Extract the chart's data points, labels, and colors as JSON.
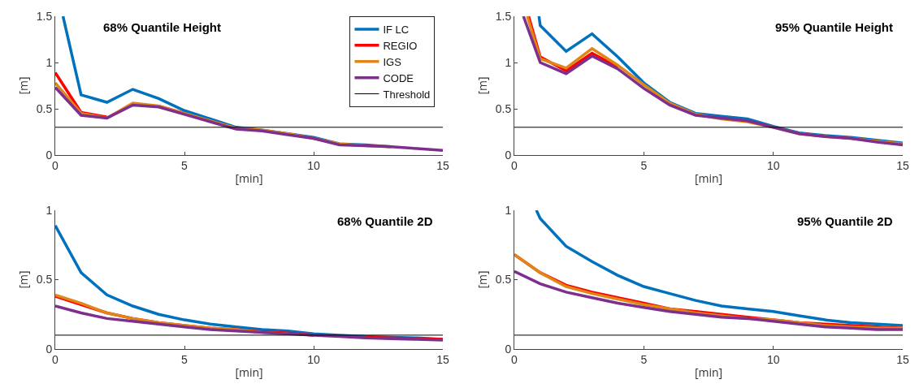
{
  "chart_data": [
    {
      "type": "line",
      "title": "68% Quantile Height",
      "xlabel": "[min]",
      "ylabel": "[m]",
      "x": [
        0,
        1,
        2,
        3,
        4,
        5,
        6,
        7,
        8,
        9,
        10,
        11,
        12,
        13,
        14,
        15
      ],
      "xlim": [
        0,
        15
      ],
      "xticks": [
        0,
        5,
        10,
        15
      ],
      "ylim": [
        0,
        1.5
      ],
      "yticks": [
        0,
        0.5,
        1,
        1.5
      ],
      "grid": false,
      "legend": "top right",
      "marker": "none",
      "line_style": "solid",
      "series": [
        {
          "name": "IF LC",
          "color": "#0072bd",
          "x": [
            0.3,
            1,
            2,
            3,
            4,
            5,
            6,
            7,
            8,
            9,
            10,
            11,
            12,
            13
          ],
          "values": [
            1.5,
            0.65,
            0.57,
            0.71,
            0.61,
            0.48,
            0.39,
            0.3,
            0.27,
            0.23,
            0.19,
            0.12,
            0.11,
            0.09
          ]
        },
        {
          "name": "REGIO",
          "color": "#ff0000",
          "values": [
            0.89,
            0.46,
            0.41,
            null,
            0.53,
            0.45,
            null,
            null,
            null,
            null,
            null,
            null,
            null,
            null,
            null,
            null
          ]
        },
        {
          "name": "IGS",
          "color": "#df8616",
          "values": [
            0.78,
            0.45,
            0.4,
            0.56,
            0.53,
            0.45,
            0.37,
            0.29,
            0.27,
            0.23,
            0.18,
            0.12,
            0.1,
            0.09,
            null,
            null
          ]
        },
        {
          "name": "CODE",
          "color": "#7e2f8e",
          "values": [
            0.73,
            0.43,
            0.4,
            0.54,
            0.52,
            0.44,
            0.36,
            0.28,
            0.26,
            0.22,
            0.18,
            0.11,
            0.1,
            0.09,
            0.07,
            0.05
          ]
        }
      ],
      "ref_lines": [
        {
          "axis": "y",
          "value": 0.3,
          "label": "Threshold",
          "color": "#000000"
        }
      ]
    },
    {
      "type": "line",
      "title": "95% Quantile Height",
      "xlabel": "[min]",
      "ylabel": "[m]",
      "xlim": [
        0,
        15
      ],
      "xticks": [
        0,
        5,
        10,
        15
      ],
      "ylim": [
        0,
        1.5
      ],
      "yticks": [
        0,
        0.5,
        1,
        1.5
      ],
      "grid": false,
      "marker": "none",
      "line_style": "solid",
      "series": [
        {
          "color": "#0072bd",
          "x": [
            0.95,
            1,
            2,
            3,
            4,
            5,
            6,
            7,
            8,
            9,
            10,
            11,
            12,
            13,
            14,
            15
          ],
          "values": [
            1.5,
            1.4,
            1.12,
            1.31,
            1.06,
            0.78,
            0.57,
            0.45,
            0.42,
            0.39,
            0.31,
            0.24,
            0.21,
            0.19,
            0.16,
            0.13
          ]
        },
        {
          "color": "#ff0000",
          "x": [
            0.55,
            1,
            2,
            3,
            4
          ],
          "values": [
            1.5,
            1.06,
            0.91,
            1.1,
            0.95
          ]
        },
        {
          "color": "#df8616",
          "x": [
            0.5,
            1,
            2,
            3,
            4,
            5,
            6,
            7,
            8,
            9,
            10,
            11,
            12,
            13,
            14,
            15
          ],
          "values": [
            1.5,
            1.04,
            0.94,
            1.15,
            0.97,
            0.76,
            0.56,
            0.44,
            0.39,
            0.36,
            0.3,
            0.23,
            0.2,
            0.18,
            0.15,
            0.12
          ]
        },
        {
          "color": "#7e2f8e",
          "x": [
            0.35,
            1,
            2,
            3,
            4,
            5,
            6,
            7,
            8,
            9,
            10,
            11,
            12,
            13,
            14,
            15
          ],
          "values": [
            1.5,
            1.0,
            0.88,
            1.07,
            0.93,
            0.72,
            0.54,
            0.43,
            0.4,
            0.37,
            0.3,
            0.23,
            0.2,
            0.18,
            0.14,
            0.11
          ]
        }
      ],
      "ref_lines": [
        {
          "axis": "y",
          "value": 0.3,
          "color": "#000000"
        }
      ]
    },
    {
      "type": "line",
      "title": "68% Quantile 2D",
      "xlabel": "[min]",
      "ylabel": "[m]",
      "x": [
        0,
        1,
        2,
        3,
        4,
        5,
        6,
        7,
        8,
        9,
        10,
        11,
        12,
        13,
        14,
        15
      ],
      "xlim": [
        0,
        15
      ],
      "xticks": [
        0,
        5,
        10,
        15
      ],
      "ylim": [
        0,
        1
      ],
      "yticks": [
        0,
        0.5,
        1
      ],
      "grid": false,
      "marker": "none",
      "line_style": "solid",
      "series": [
        {
          "color": "#0072bd",
          "values": [
            0.89,
            0.55,
            0.39,
            0.31,
            0.25,
            0.21,
            0.18,
            0.16,
            0.14,
            0.13,
            0.11,
            0.1,
            0.09,
            0.085,
            0.08,
            0.07
          ]
        },
        {
          "color": "#ff0000",
          "values": [
            0.38,
            0.32,
            0.26,
            0.22,
            0.19,
            0.17,
            0.15,
            0.14,
            0.125,
            0.115,
            0.1,
            null,
            0.085,
            0.08,
            0.075,
            0.07
          ]
        },
        {
          "color": "#df8616",
          "values": [
            0.39,
            0.33,
            0.26,
            0.22,
            0.19,
            0.17,
            0.15,
            0.14,
            0.12,
            0.11,
            null,
            null,
            null,
            null,
            null,
            null
          ]
        },
        {
          "color": "#7e2f8e",
          "values": [
            0.31,
            0.26,
            0.22,
            0.2,
            0.18,
            0.16,
            0.14,
            0.13,
            0.12,
            0.11,
            0.1,
            0.09,
            0.08,
            0.075,
            0.07,
            0.065
          ]
        }
      ],
      "ref_lines": [
        {
          "axis": "y",
          "value": 0.1,
          "color": "#000000"
        }
      ]
    },
    {
      "type": "line",
      "title": "95% Quantile 2D",
      "xlabel": "[min]",
      "ylabel": "[m]",
      "x": [
        0,
        1,
        2,
        3,
        4,
        5,
        6,
        7,
        8,
        9,
        10,
        11,
        12,
        13,
        14,
        15
      ],
      "xlim": [
        0,
        15
      ],
      "xticks": [
        0,
        5,
        10,
        15
      ],
      "ylim": [
        0,
        1
      ],
      "yticks": [
        0,
        0.5,
        1
      ],
      "grid": false,
      "marker": "none",
      "line_style": "solid",
      "series": [
        {
          "color": "#0072bd",
          "x": [
            0.85,
            1,
            2,
            3,
            4,
            5,
            6,
            7,
            8,
            9,
            10,
            11,
            12,
            13,
            14,
            15
          ],
          "values": [
            1.0,
            0.94,
            0.74,
            0.63,
            0.53,
            0.45,
            0.4,
            0.35,
            0.31,
            0.29,
            0.27,
            0.24,
            0.21,
            0.19,
            0.18,
            0.17
          ]
        },
        {
          "color": "#ff0000",
          "values": [
            0.68,
            0.55,
            0.46,
            0.41,
            0.37,
            0.33,
            0.29,
            0.27,
            0.25,
            0.23,
            0.21,
            0.19,
            0.18,
            0.17,
            0.16,
            0.15
          ]
        },
        {
          "color": "#df8616",
          "values": [
            0.68,
            0.55,
            0.45,
            0.4,
            0.36,
            0.32,
            0.29,
            0.26,
            0.24,
            0.22,
            0.21,
            0.19,
            0.17,
            0.16,
            0.15,
            0.15
          ]
        },
        {
          "color": "#7e2f8e",
          "values": [
            0.56,
            0.47,
            0.41,
            0.37,
            0.33,
            0.3,
            0.27,
            0.25,
            0.23,
            0.22,
            0.2,
            0.18,
            0.16,
            0.15,
            0.14,
            0.14
          ]
        }
      ],
      "ref_lines": [
        {
          "axis": "y",
          "value": 0.1,
          "color": "#000000"
        }
      ]
    }
  ]
}
